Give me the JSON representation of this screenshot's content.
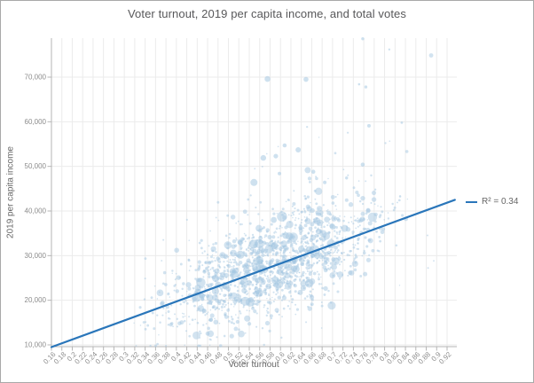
{
  "chart": {
    "title": "Voter turnout, 2019 per capita income, and total votes",
    "xlabel": "Voter turnout",
    "ylabel": "2019 per capita income",
    "legend_label": "R² = 0.34"
  },
  "chart_data": {
    "type": "scatter",
    "subtype": "bubble",
    "title": "Voter turnout, 2019 per capita income, and total votes",
    "xlabel": "Voter turnout",
    "ylabel": "2019 per capita income",
    "bubble_size_encodes": "total votes",
    "grid": true,
    "legend": {
      "label": "R² = 0.34",
      "position": "right-of-plot"
    },
    "xlim": [
      0.16,
      0.94
    ],
    "ylim": [
      9600,
      79500
    ],
    "x_ticks": [
      0.16,
      0.18,
      0.2,
      0.22,
      0.24,
      0.26,
      0.28,
      0.3,
      0.32,
      0.34,
      0.36,
      0.38,
      0.4,
      0.42,
      0.44,
      0.46,
      0.48,
      0.5,
      0.52,
      0.54,
      0.56,
      0.58,
      0.6,
      0.62,
      0.64,
      0.66,
      0.68,
      0.7,
      0.72,
      0.74,
      0.76,
      0.78,
      0.8,
      0.82,
      0.84,
      0.86,
      0.88,
      0.9,
      0.92
    ],
    "y_ticks": [
      10000,
      20000,
      30000,
      40000,
      50000,
      60000,
      70000
    ],
    "trendline": {
      "r_squared": 0.34,
      "x1": 0.16,
      "y1": 9500,
      "x2": 0.935,
      "y2": 42500,
      "label": "R² = 0.34"
    },
    "points": [
      [
        0.758,
        78600,
        1.7
      ],
      [
        0.809,
        76200,
        1.2
      ],
      [
        0.575,
        69600,
        3.3
      ],
      [
        0.649,
        69500,
        2.8
      ],
      [
        0.751,
        68400,
        1.3
      ],
      [
        0.764,
        67800,
        1.7
      ],
      [
        0.77,
        59100,
        2.0
      ],
      [
        0.833,
        59800,
        1.4
      ],
      [
        0.608,
        54700,
        2.3
      ],
      [
        0.634,
        53700,
        3.0
      ],
      [
        0.567,
        51900,
        3.2
      ],
      [
        0.591,
        52300,
        2.6
      ],
      [
        0.549,
        46400,
        4.0
      ],
      [
        0.598,
        48400,
        2.0
      ],
      [
        0.663,
        48800,
        2.3
      ],
      [
        0.685,
        46400,
        2.0
      ],
      [
        0.727,
        47400,
        1.7
      ],
      [
        0.758,
        50400,
        2.3
      ],
      [
        0.548,
        32600,
        5.0
      ],
      [
        0.523,
        30200,
        4.6
      ],
      [
        0.56,
        29000,
        4.2
      ],
      [
        0.61,
        34500,
        3.8
      ],
      [
        0.587,
        38000,
        3.4
      ],
      [
        0.64,
        31500,
        3.6
      ],
      [
        0.512,
        25800,
        4.2
      ],
      [
        0.48,
        23500,
        3.4
      ],
      [
        0.655,
        40500,
        3.0
      ],
      [
        0.7,
        36500,
        3.2
      ],
      [
        0.45,
        21000,
        3.0
      ],
      [
        0.59,
        24500,
        4.4
      ],
      [
        0.63,
        27000,
        4.0
      ],
      [
        0.67,
        30000,
        3.4
      ]
    ],
    "cloud_model": {
      "note": "approx 1500 small unlabeled bubbles forming a positively correlated cloud; parameters estimated from pixels",
      "seed": 11,
      "count": 1500,
      "x_mean": 0.585,
      "x_sd": 0.105,
      "x_range": [
        0.3,
        0.937
      ],
      "y_trend_intercept_at_x0.16": 9500,
      "y_trend_slope_per_x": 42600,
      "y_noise_sd": 5600,
      "upper_outlier_prob": 0.035,
      "upper_outlier_span": 26000,
      "y_range": [
        9800,
        78000
      ]
    }
  },
  "colors": {
    "point": "#a5c8e1",
    "trendline": "#2a76ba",
    "grid": "#ebebeb",
    "axis": "#b5b5b5",
    "tick_text": "#8c8c8c",
    "axis_title_text": "#666666",
    "title_text": "#58585a",
    "frame_border": "#a9a9a9",
    "background": "#ffffff"
  }
}
